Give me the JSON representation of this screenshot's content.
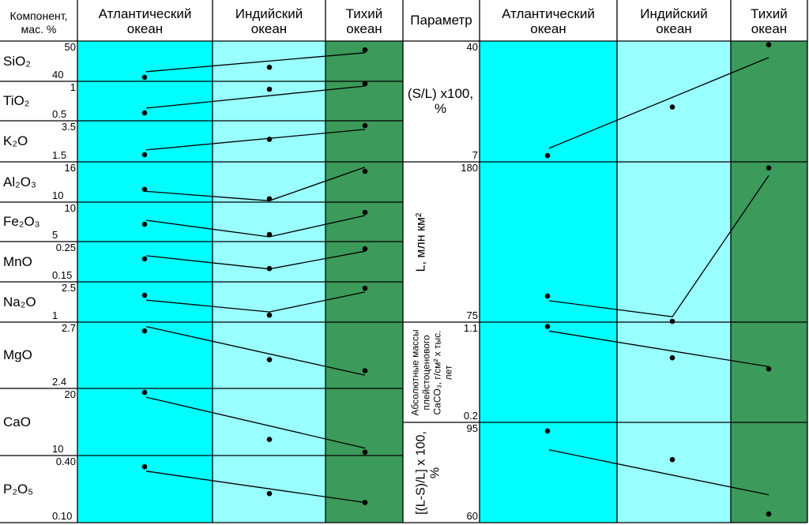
{
  "chart_data": [
    {
      "type": "line",
      "title": "",
      "header": {
        "param": "Компонент,\nмас. %",
        "columns": [
          "Атлантический\nокеан",
          "Индийский\nокеан",
          "Тихий\nокеан"
        ]
      },
      "categories": [
        "Атлантический океан",
        "Индийский океан",
        "Тихий океан"
      ],
      "panels": [
        {
          "label": "SiO₂",
          "ymax": "50",
          "ymin": "40",
          "range": [
            40,
            50
          ],
          "points": [
            41,
            43.5,
            47.8
          ],
          "trend": [
            42.4,
            47.1
          ]
        },
        {
          "label": "TiO₂",
          "ymax": "1",
          "ymin": "0.5",
          "range": [
            0.5,
            1
          ],
          "points": [
            0.6,
            0.9,
            0.97
          ],
          "trend": [
            0.66,
            0.94
          ]
        },
        {
          "label": "K₂O",
          "ymax": "3.5",
          "ymin": "1.5",
          "range": [
            1.5,
            3.5
          ],
          "points": [
            1.85,
            2.6,
            3.27
          ],
          "trend": [
            2.08,
            3.08
          ]
        },
        {
          "label": "Al₂O₃",
          "ymax": "16",
          "ymin": "10",
          "range": [
            10,
            16
          ],
          "points": [
            11.9,
            10.5,
            14.6
          ],
          "trend": [
            11.6,
            10.2,
            15.2
          ]
        },
        {
          "label": "Fe₂O₃",
          "ymax": "10",
          "ymin": "5",
          "range": [
            5,
            10
          ],
          "points": [
            7.2,
            5.9,
            8.7
          ],
          "trend": [
            7.7,
            5.6,
            8.3
          ]
        },
        {
          "label": "MnO",
          "ymax": "0.25",
          "ymin": "0.15",
          "range": [
            0.15,
            0.25
          ],
          "points": [
            0.207,
            0.183,
            0.232
          ],
          "trend": [
            0.215,
            0.182,
            0.226
          ]
        },
        {
          "label": "Na₂O",
          "ymax": "2.5",
          "ymin": "1",
          "range": [
            1,
            2.5
          ],
          "points": [
            2.0,
            1.26,
            2.26
          ],
          "trend": [
            1.82,
            1.38,
            2.12
          ]
        },
        {
          "label": "MgO",
          "ymax": "2.7",
          "ymin": "2.4",
          "range": [
            2.4,
            2.7
          ],
          "points": [
            2.66,
            2.53,
            2.48
          ],
          "trend": [
            2.68,
            2.46
          ]
        },
        {
          "label": "CaO",
          "ymax": "20",
          "ymin": "10",
          "range": [
            10,
            20
          ],
          "points": [
            19.4,
            12.4,
            10.5
          ],
          "trend": [
            18.7,
            11.1
          ]
        },
        {
          "label": "P₂O₅",
          "ymax": "0.40",
          "ymin": "0.10",
          "range": [
            0.1,
            0.4
          ],
          "points": [
            0.35,
            0.23,
            0.19
          ],
          "trend": [
            0.33,
            0.19
          ]
        }
      ]
    },
    {
      "type": "line",
      "title": "",
      "header": {
        "param": "Параметр",
        "columns": [
          "Атлантический\nокеан",
          "Индийский\nокеан",
          "Тихий\nокеан"
        ]
      },
      "categories": [
        "Атлантический океан",
        "Индийский океан",
        "Тихий океан"
      ],
      "panels": [
        {
          "label": "(S/L) x100,\n%",
          "ymax": "40",
          "ymin": "7",
          "range": [
            7,
            40
          ],
          "points": [
            8.7,
            22,
            39
          ],
          "trend": [
            10.7,
            35.5
          ]
        },
        {
          "label": "L, млн км²",
          "ymax": "180",
          "ymin": "75",
          "range": [
            75,
            180
          ],
          "points": [
            92,
            75.5,
            176
          ],
          "trend": [
            89,
            78.5,
            171
          ]
        },
        {
          "label": "Абсолютные массы\nплейстоценового\nCaCO₃, г/см² х тыс.\nлет",
          "ymax": "1.1",
          "ymin": "0.2",
          "range": [
            0.2,
            1.1
          ],
          "points": [
            1.06,
            0.78,
            0.68
          ],
          "trend": [
            1.02,
            0.7
          ]
        },
        {
          "label": "[(L-S)/L] x 100,\n%",
          "ymax": "95",
          "ymin": "60",
          "range": [
            60,
            95
          ],
          "points": [
            92,
            82,
            63
          ],
          "trend": [
            85.4,
            69.7
          ]
        }
      ]
    }
  ],
  "colors": {
    "atlantic": "#00ffff",
    "indian": "#99ffff",
    "pacific": "#3c9a5a",
    "grid": "#000000"
  }
}
